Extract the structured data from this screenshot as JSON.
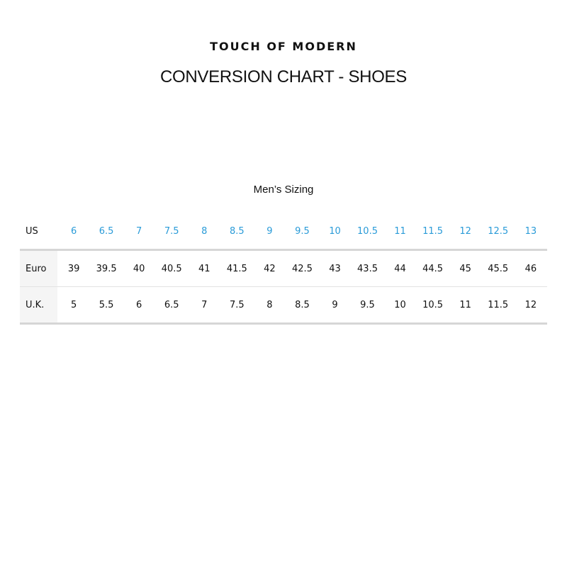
{
  "brand": "TOUCH OF MODERN",
  "title": "CONVERSION CHART - SHOES",
  "subtitle": "Men’s Sizing",
  "accent_color": "#2a9bd8",
  "table": {
    "rows": [
      {
        "label": "US",
        "values": [
          "6",
          "6.5",
          "7",
          "7.5",
          "8",
          "8.5",
          "9",
          "9.5",
          "10",
          "10.5",
          "11",
          "11.5",
          "12",
          "12.5",
          "13"
        ]
      },
      {
        "label": "Euro",
        "values": [
          "39",
          "39.5",
          "40",
          "40.5",
          "41",
          "41.5",
          "42",
          "42.5",
          "43",
          "43.5",
          "44",
          "44.5",
          "45",
          "45.5",
          "46"
        ]
      },
      {
        "label": "U.K.",
        "values": [
          "5",
          "5.5",
          "6",
          "6.5",
          "7",
          "7.5",
          "8",
          "8.5",
          "9",
          "9.5",
          "10",
          "10.5",
          "11",
          "11.5",
          "12"
        ]
      }
    ]
  }
}
